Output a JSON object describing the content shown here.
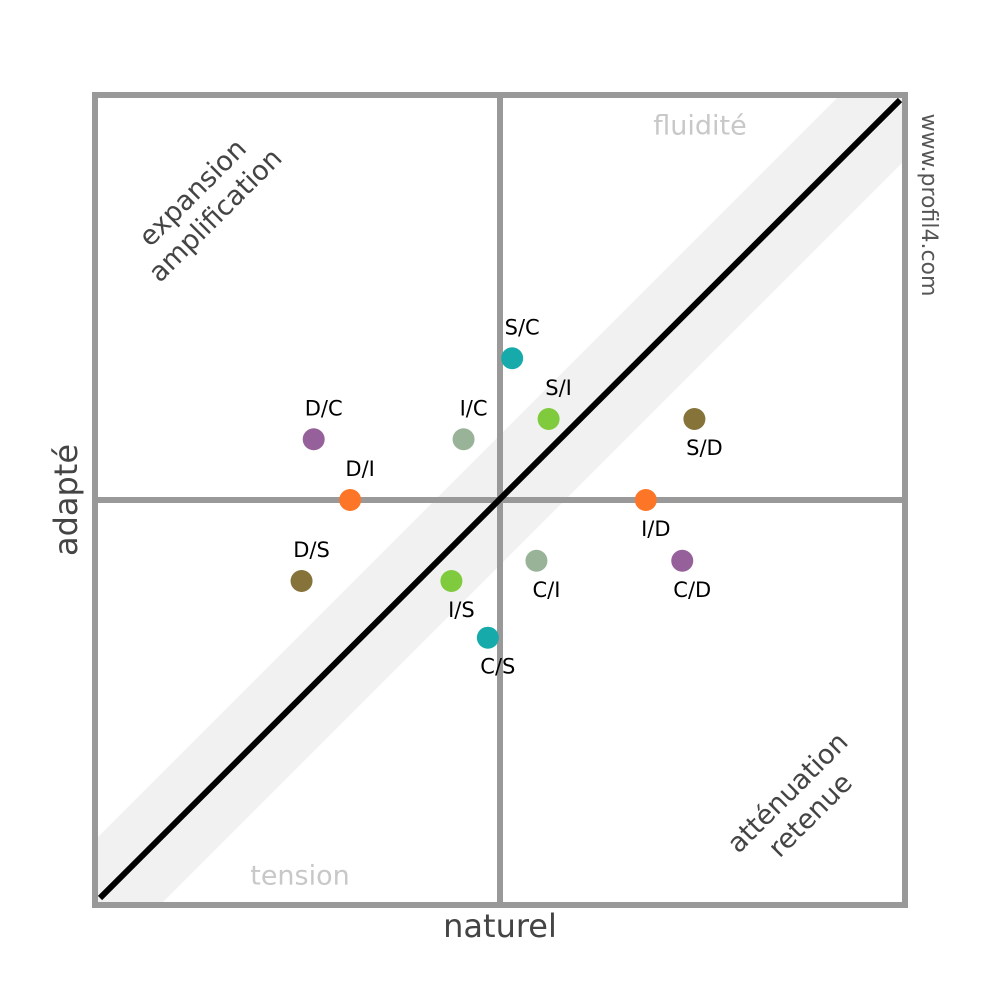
{
  "chart_data": {
    "type": "scatter",
    "xlabel": "naturel",
    "ylabel": "adapté",
    "xlim": [
      -10,
      10
    ],
    "ylim": [
      -10,
      10
    ],
    "series": [
      {
        "labels": [
          "S/C",
          "S/I",
          "S/D",
          "D/C",
          "I/C",
          "D/I",
          "I/D",
          "D/S",
          "I/S",
          "C/I",
          "C/D",
          "C/S"
        ],
        "x": [
          0.3,
          1.2,
          4.8,
          -4.6,
          -0.9,
          -3.7,
          3.6,
          -4.9,
          -1.2,
          0.9,
          4.5,
          -0.3
        ],
        "values": [
          3.5,
          2.0,
          2.0,
          1.5,
          1.5,
          0,
          0,
          -2.0,
          -2.0,
          -1.5,
          -1.5,
          -3.4
        ],
        "colors": [
          "#17aaaa",
          "#7fcb3d",
          "#857339",
          "#96609a",
          "#98b398",
          "#fd7627",
          "#fd7627",
          "#857339",
          "#7fcb3d",
          "#98b398",
          "#96609a",
          "#17aaaa"
        ]
      }
    ],
    "annotations": [
      "expansion",
      "amplification",
      "fluidité",
      "tension",
      "atténuation",
      "retenue"
    ],
    "watermark": "www.profil4.com"
  }
}
